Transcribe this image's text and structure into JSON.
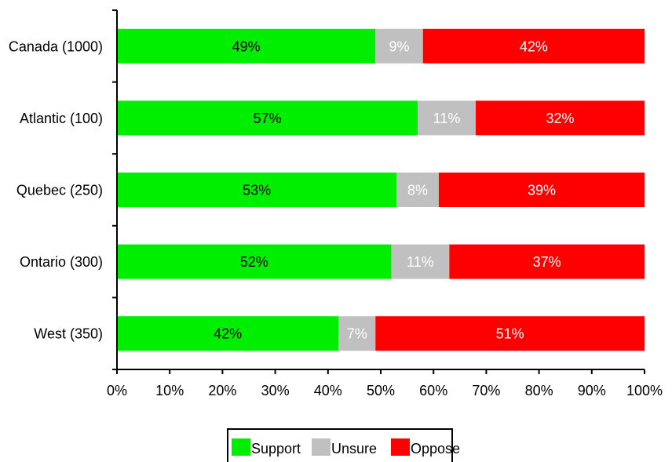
{
  "chart_data": {
    "type": "bar",
    "orientation": "horizontal",
    "stacked": true,
    "categories": [
      "Canada (1000)",
      "Atlantic (100)",
      "Quebec (250)",
      "Ontario (300)",
      "West (350)"
    ],
    "series": [
      {
        "name": "Support",
        "values": [
          49,
          57,
          53,
          52,
          42
        ],
        "labels": [
          "49%",
          "57%",
          "53%",
          "52%",
          "42%"
        ],
        "color": "#00ee00",
        "label_color": "#000000"
      },
      {
        "name": "Unsure",
        "values": [
          9,
          11,
          8,
          11,
          7
        ],
        "labels": [
          "9%",
          "11%",
          "8%",
          "11%",
          "7%"
        ],
        "color": "#c0c0c0",
        "label_color": "#ffffff"
      },
      {
        "name": "Oppose",
        "values": [
          42,
          32,
          39,
          37,
          51
        ],
        "labels": [
          "42%",
          "32%",
          "39%",
          "37%",
          "51%"
        ],
        "color": "#ff0000",
        "label_color": "#ffffff"
      }
    ],
    "x_ticks": [
      0,
      10,
      20,
      30,
      40,
      50,
      60,
      70,
      80,
      90,
      100
    ],
    "x_tick_labels": [
      "0%",
      "10%",
      "20%",
      "30%",
      "40%",
      "50%",
      "60%",
      "70%",
      "80%",
      "90%",
      "100%"
    ],
    "xlim": [
      0,
      100
    ],
    "xlabel": "",
    "ylabel": "",
    "title": "",
    "grid": false,
    "legend": {
      "position": "bottom",
      "entries": [
        "Support",
        "Unsure",
        "Oppose"
      ]
    }
  }
}
